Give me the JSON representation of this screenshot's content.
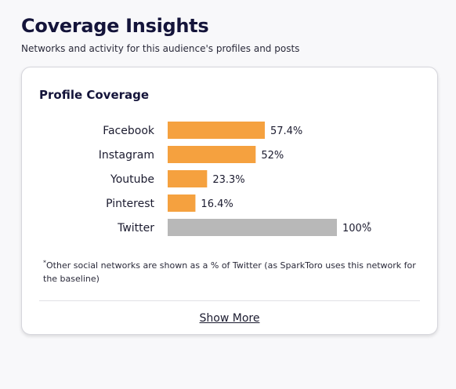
{
  "header": {
    "title": "Coverage Insights",
    "subtitle": "Networks and activity for this audience's profiles and posts"
  },
  "card": {
    "title": "Profile Coverage",
    "footnote_mark": "*",
    "footnote_text": "Other social networks are shown as a % of Twitter (as SparkToro uses this network for the baseline)",
    "show_more_label": "Show More"
  },
  "colors": {
    "bar_primary": "#f5a13f",
    "bar_baseline": "#b8b8b8"
  },
  "chart_data": {
    "type": "bar",
    "orientation": "horizontal",
    "categories": [
      "Facebook",
      "Instagram",
      "Youtube",
      "Pinterest",
      "Twitter"
    ],
    "values": [
      57.4,
      52,
      23.3,
      16.4,
      100
    ],
    "value_labels": [
      "57.4%",
      "52%",
      "23.3%",
      "16.4%",
      "100%"
    ],
    "baseline_category": "Twitter",
    "baseline_marker": "*",
    "xlim": [
      0,
      100
    ],
    "grid": false,
    "legend": false
  }
}
